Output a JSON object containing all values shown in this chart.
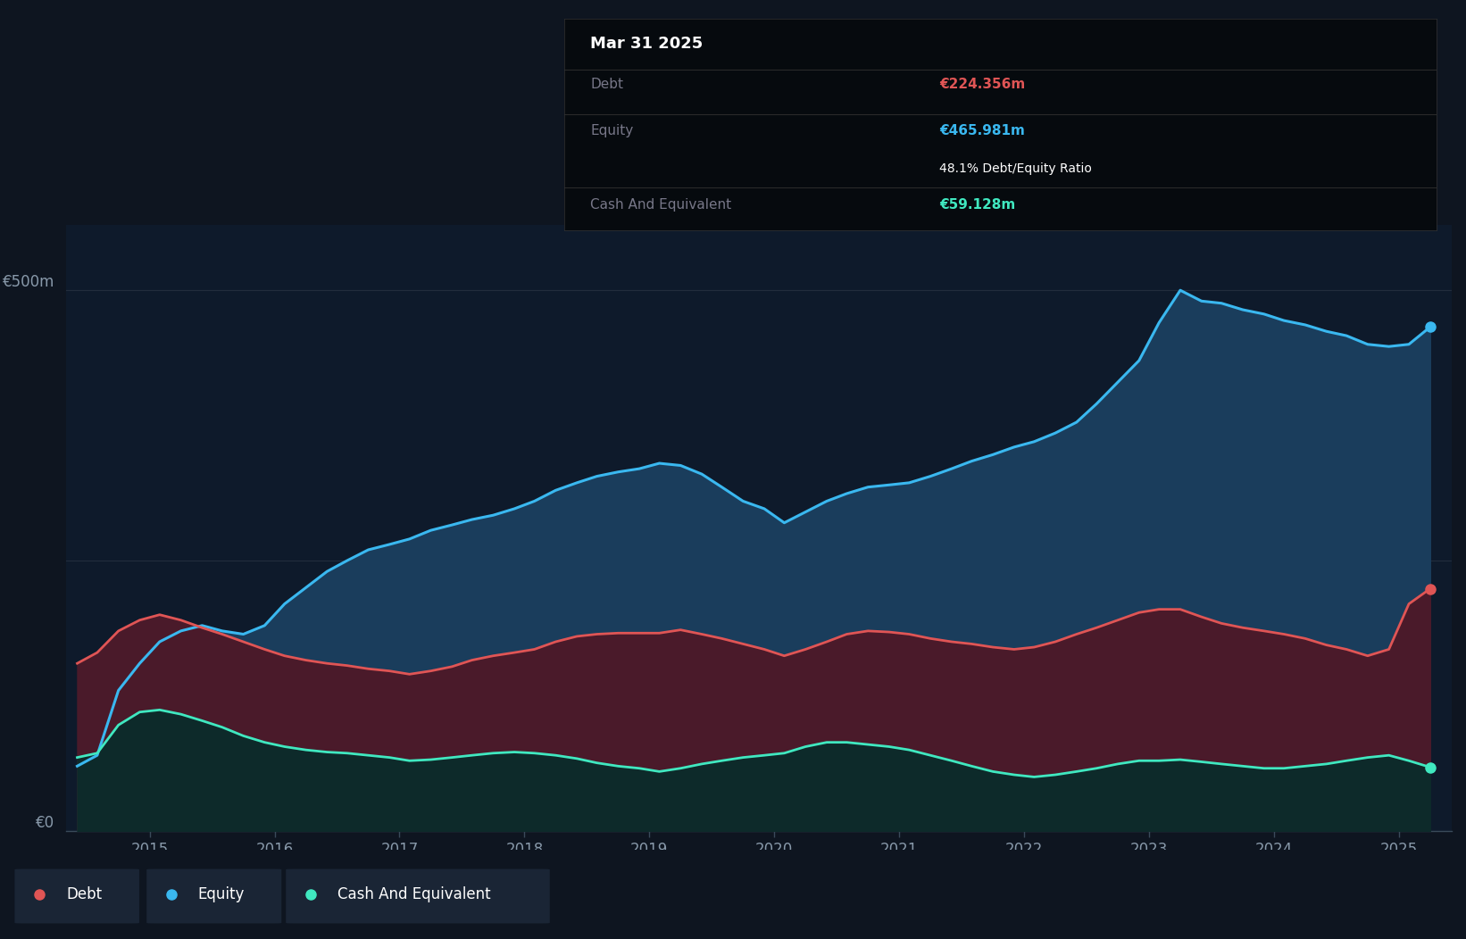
{
  "background_color": "#0e1520",
  "plot_bg_color": "#0e1a2b",
  "grid_color": "#253040",
  "title_text": "Mar 31 2025",
  "tooltip_debt_label": "Debt",
  "tooltip_debt_value": "€224.356m",
  "tooltip_debt_color": "#e05555",
  "tooltip_equity_label": "Equity",
  "tooltip_equity_value": "€465.981m",
  "tooltip_equity_color": "#3ab8f0",
  "tooltip_ratio": "48.1% Debt/Equity Ratio",
  "tooltip_ratio_color": "#ffffff",
  "tooltip_cash_label": "Cash And Equivalent",
  "tooltip_cash_value": "€59.128m",
  "tooltip_cash_color": "#40e8c0",
  "ylabel_500": "€500m",
  "ylabel_0": "€0",
  "equity_color": "#3ab8f0",
  "equity_fill": "#1a3d5c",
  "debt_color": "#e05555",
  "debt_fill": "#4a1a2a",
  "cash_color": "#40e8c0",
  "cash_fill": "#0d2a2a",
  "legend_bg": "#1a2535",
  "years": [
    2014.42,
    2014.58,
    2014.75,
    2014.92,
    2015.08,
    2015.25,
    2015.42,
    2015.58,
    2015.75,
    2015.92,
    2016.08,
    2016.25,
    2016.42,
    2016.58,
    2016.75,
    2016.92,
    2017.08,
    2017.25,
    2017.42,
    2017.58,
    2017.75,
    2017.92,
    2018.08,
    2018.25,
    2018.42,
    2018.58,
    2018.75,
    2018.92,
    2019.08,
    2019.25,
    2019.42,
    2019.58,
    2019.75,
    2019.92,
    2020.08,
    2020.25,
    2020.42,
    2020.58,
    2020.75,
    2020.92,
    2021.08,
    2021.25,
    2021.42,
    2021.58,
    2021.75,
    2021.92,
    2022.08,
    2022.25,
    2022.42,
    2022.58,
    2022.75,
    2022.92,
    2023.08,
    2023.25,
    2023.42,
    2023.58,
    2023.75,
    2023.92,
    2024.08,
    2024.25,
    2024.42,
    2024.58,
    2024.75,
    2024.92,
    2025.08,
    2025.25
  ],
  "equity": [
    60,
    70,
    130,
    155,
    175,
    185,
    190,
    185,
    182,
    190,
    210,
    225,
    240,
    250,
    260,
    265,
    270,
    278,
    283,
    288,
    292,
    298,
    305,
    315,
    322,
    328,
    332,
    335,
    340,
    338,
    330,
    318,
    305,
    298,
    285,
    295,
    305,
    312,
    318,
    320,
    322,
    328,
    335,
    342,
    348,
    355,
    360,
    368,
    378,
    395,
    415,
    435,
    470,
    500,
    490,
    488,
    482,
    478,
    472,
    468,
    462,
    458,
    450,
    448,
    450,
    466
  ],
  "debt": [
    155,
    165,
    185,
    195,
    200,
    195,
    188,
    182,
    175,
    168,
    162,
    158,
    155,
    153,
    150,
    148,
    145,
    148,
    152,
    158,
    162,
    165,
    168,
    175,
    180,
    182,
    183,
    183,
    183,
    186,
    182,
    178,
    173,
    168,
    162,
    168,
    175,
    182,
    185,
    184,
    182,
    178,
    175,
    173,
    170,
    168,
    170,
    175,
    182,
    188,
    195,
    202,
    205,
    205,
    198,
    192,
    188,
    185,
    182,
    178,
    172,
    168,
    162,
    168,
    210,
    224
  ],
  "cash": [
    68,
    72,
    98,
    110,
    112,
    108,
    102,
    96,
    88,
    82,
    78,
    75,
    73,
    72,
    70,
    68,
    65,
    66,
    68,
    70,
    72,
    73,
    72,
    70,
    67,
    63,
    60,
    58,
    55,
    58,
    62,
    65,
    68,
    70,
    72,
    78,
    82,
    82,
    80,
    78,
    75,
    70,
    65,
    60,
    55,
    52,
    50,
    52,
    55,
    58,
    62,
    65,
    65,
    66,
    64,
    62,
    60,
    58,
    58,
    60,
    62,
    65,
    68,
    70,
    65,
    59
  ],
  "xlim": [
    2014.33,
    2025.42
  ],
  "ylim": [
    0,
    560
  ],
  "xticks": [
    2015,
    2016,
    2017,
    2018,
    2019,
    2020,
    2021,
    2022,
    2023,
    2024,
    2025
  ]
}
